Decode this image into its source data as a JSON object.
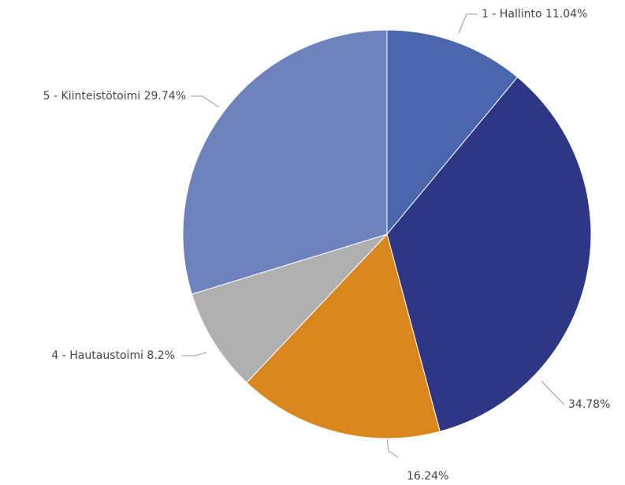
{
  "chart_data": {
    "type": "pie",
    "slices": [
      {
        "name": "1 - Hallinto",
        "value": 11.04,
        "label": "1 - Hallinto 11.04%",
        "color": "#4a67ad"
      },
      {
        "name": "",
        "value": 34.78,
        "label": "34.78%",
        "color": "#2e3786"
      },
      {
        "name": "",
        "value": 16.24,
        "label": "16.24%",
        "color": "#d9861c"
      },
      {
        "name": "4 - Hautaustoimi",
        "value": 8.2,
        "label": "4 - Hautaustoimi 8.2%",
        "color": "#b0b0b0"
      },
      {
        "name": "5 - Kiinteistötoimi",
        "value": 29.74,
        "label": "5 - Kiinteistötoimi 29.74%",
        "color": "#6e82bd"
      }
    ],
    "start_angle_deg": 0,
    "direction": "clockwise"
  }
}
